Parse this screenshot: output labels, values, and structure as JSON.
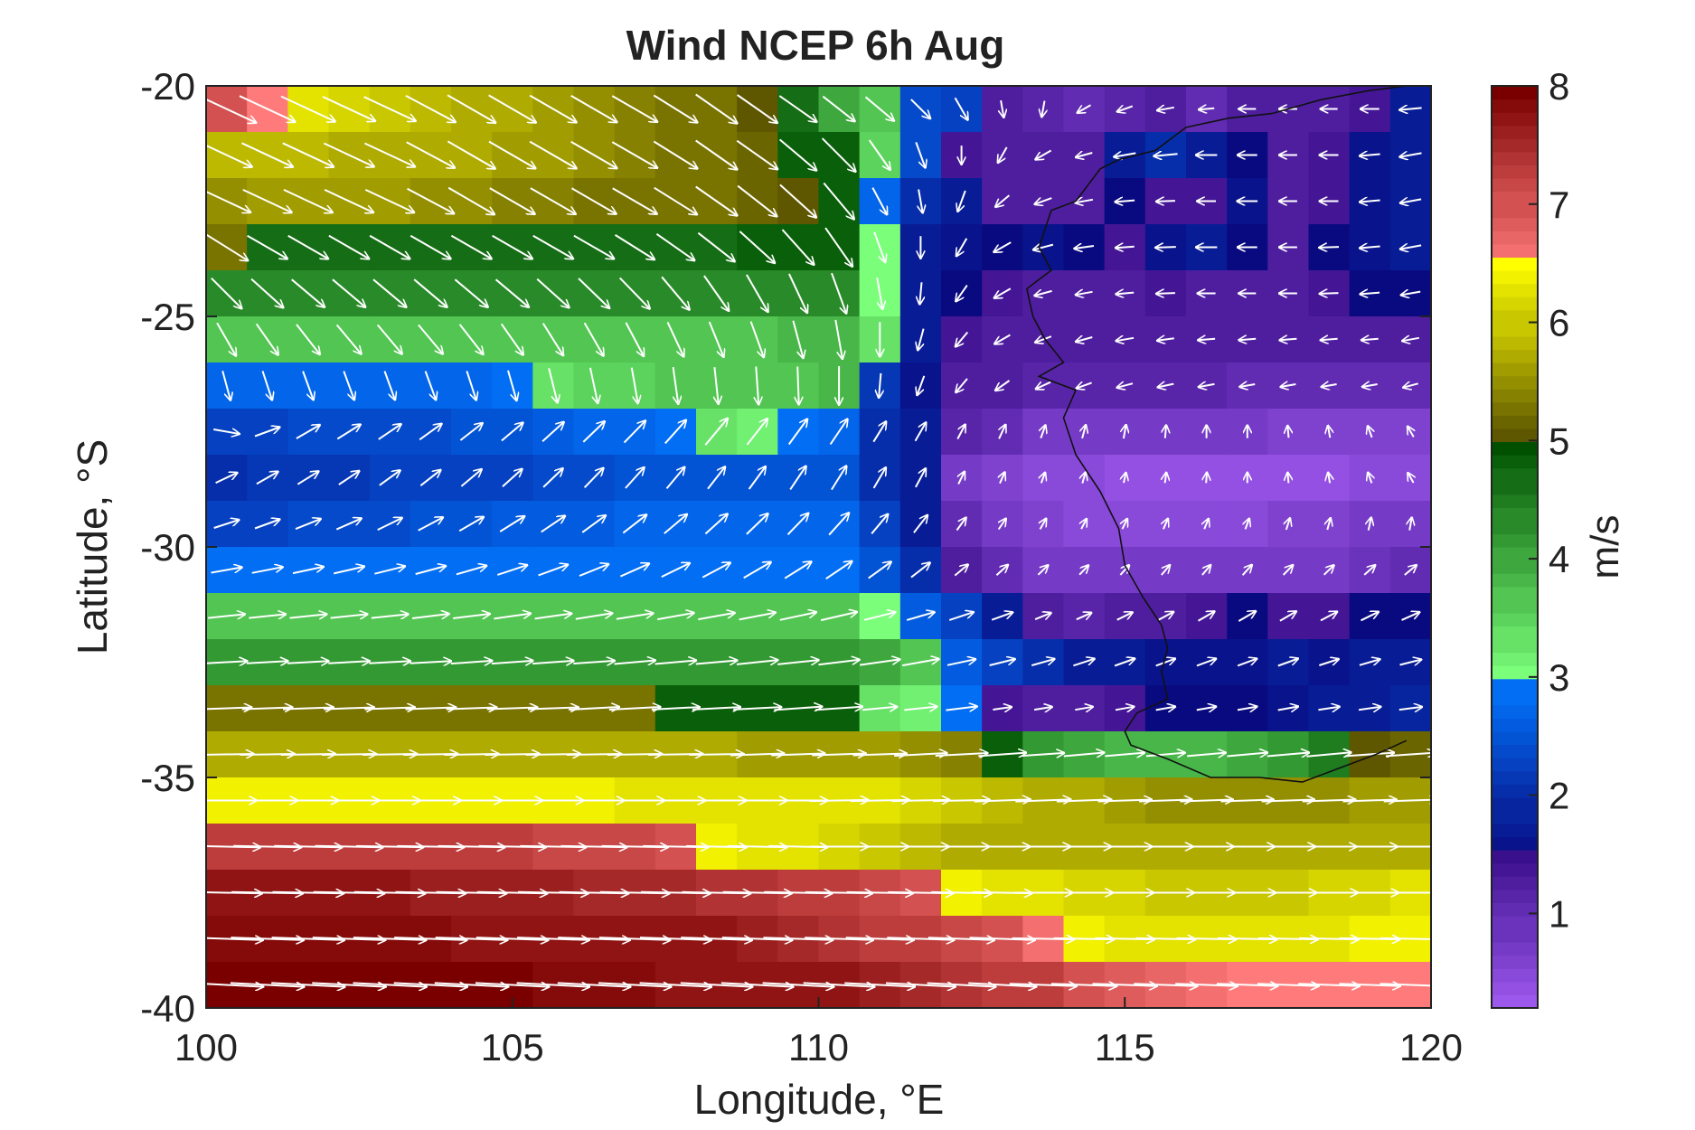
{
  "chart_data": {
    "type": "heatmap",
    "title": "Wind NCEP 6h Aug",
    "xlabel": "Longitude, °E",
    "ylabel": "Latitude, °S",
    "colorbar_label": "m/s",
    "xlim": [
      100,
      120
    ],
    "ylim": [
      -40,
      -20
    ],
    "x_ticks": [
      {
        "value": 100,
        "label": "100"
      },
      {
        "value": 105,
        "label": "105"
      },
      {
        "value": 110,
        "label": "110"
      },
      {
        "value": 115,
        "label": "115"
      },
      {
        "value": 120,
        "label": "120"
      }
    ],
    "y_ticks": [
      {
        "value": -20,
        "label": "-20"
      },
      {
        "value": -25,
        "label": "-25"
      },
      {
        "value": -30,
        "label": "-30"
      },
      {
        "value": -35,
        "label": "-35"
      },
      {
        "value": -40,
        "label": "-40"
      }
    ],
    "colorbar": {
      "range": [
        0.2,
        8
      ],
      "ticks": [
        {
          "value": 1,
          "label": "1"
        },
        {
          "value": 2,
          "label": "2"
        },
        {
          "value": 3,
          "label": "3"
        },
        {
          "value": 4,
          "label": "4"
        },
        {
          "value": 5,
          "label": "5"
        },
        {
          "value": 6,
          "label": "6"
        },
        {
          "value": 7,
          "label": "7"
        },
        {
          "value": 8,
          "label": "8"
        }
      ],
      "colors": {
        "0": "#b066ff",
        "1.5": "#3a0f8c",
        "1.5b": "#0a0a80",
        "3": "#0077ff",
        "3b": "#7bff7b",
        "5": "#005000",
        "5b": "#5e5700",
        "6.5": "#ffff00",
        "6.5b": "#ff7a7a",
        "8": "#7a0000"
      }
    },
    "grid": false,
    "grid_spec": {
      "lon_start": 100,
      "lon_step": 1,
      "lon_count": 20,
      "lat_start": -20.5,
      "lat_step": -1,
      "lat_count": 20
    },
    "speed_rows": [
      [
        7.0,
        6.5,
        6.3,
        6.1,
        6.0,
        5.9,
        5.8,
        5.7,
        5.6,
        5.5,
        5.4,
        5.3,
        5.2,
        5.0,
        4.6,
        4.0,
        3.6,
        2.4,
        2.2,
        1.2,
        1.1,
        1.0,
        1.1,
        1.2,
        1.0,
        1.2,
        1.3,
        1.2,
        1.4,
        1.8
      ],
      [
        5.9,
        5.9,
        5.9,
        5.8,
        5.8,
        5.7,
        5.7,
        5.6,
        5.6,
        5.5,
        5.4,
        5.3,
        5.2,
        5.1,
        4.9,
        4.8,
        3.5,
        2.4,
        1.4,
        1.3,
        1.3,
        1.2,
        1.8,
        2.0,
        1.7,
        1.5,
        1.3,
        1.4,
        1.6,
        1.8
      ],
      [
        5.5,
        5.6,
        5.6,
        5.6,
        5.6,
        5.5,
        5.5,
        5.4,
        5.4,
        5.3,
        5.3,
        5.2,
        5.2,
        5.1,
        5.0,
        4.8,
        2.8,
        2.0,
        1.8,
        1.3,
        1.3,
        1.3,
        1.5,
        1.4,
        1.4,
        1.6,
        1.3,
        1.4,
        1.6,
        1.7
      ],
      [
        5.2,
        4.7,
        4.7,
        4.7,
        4.7,
        4.7,
        4.7,
        4.7,
        4.7,
        4.7,
        4.7,
        4.7,
        4.7,
        4.8,
        4.8,
        4.8,
        3.0,
        1.8,
        1.6,
        1.5,
        1.6,
        1.5,
        1.4,
        1.6,
        1.7,
        1.5,
        1.3,
        1.5,
        1.6,
        1.7
      ],
      [
        4.3,
        4.3,
        4.3,
        4.3,
        4.3,
        4.3,
        4.3,
        4.3,
        4.3,
        4.3,
        4.3,
        4.3,
        4.3,
        4.3,
        4.3,
        4.3,
        3.0,
        1.8,
        1.5,
        1.4,
        1.3,
        1.2,
        1.3,
        1.4,
        1.3,
        1.2,
        1.3,
        1.4,
        1.5,
        1.5
      ],
      [
        3.7,
        3.7,
        3.7,
        3.7,
        3.7,
        3.7,
        3.7,
        3.7,
        3.7,
        3.7,
        3.7,
        3.7,
        3.7,
        3.7,
        3.8,
        3.9,
        3.3,
        1.8,
        1.4,
        1.3,
        1.2,
        1.2,
        1.3,
        1.2,
        1.2,
        1.2,
        1.2,
        1.2,
        1.2,
        1.2
      ],
      [
        2.8,
        2.8,
        2.8,
        2.8,
        2.8,
        2.8,
        2.8,
        2.9,
        3.4,
        3.5,
        3.5,
        3.6,
        3.6,
        3.7,
        3.7,
        3.8,
        2.1,
        1.6,
        1.3,
        1.2,
        1.1,
        1.1,
        1.1,
        1.1,
        1.1,
        1.0,
        1.0,
        1.0,
        1.0,
        1.0
      ],
      [
        2.3,
        2.3,
        2.4,
        2.4,
        2.4,
        2.4,
        2.5,
        2.5,
        2.6,
        2.7,
        2.8,
        2.9,
        3.3,
        3.1,
        2.9,
        2.8,
        2.0,
        1.7,
        1.1,
        1.0,
        0.8,
        0.8,
        0.8,
        0.7,
        0.7,
        0.7,
        0.6,
        0.6,
        0.6,
        0.6
      ],
      [
        2.0,
        2.1,
        2.1,
        2.1,
        2.2,
        2.2,
        2.3,
        2.3,
        2.4,
        2.4,
        2.5,
        2.5,
        2.5,
        2.5,
        2.5,
        2.5,
        2.0,
        1.7,
        0.8,
        0.6,
        0.5,
        0.5,
        0.4,
        0.4,
        0.4,
        0.4,
        0.4,
        0.4,
        0.5,
        0.5
      ],
      [
        2.3,
        2.3,
        2.4,
        2.4,
        2.4,
        2.5,
        2.5,
        2.6,
        2.6,
        2.6,
        2.7,
        2.7,
        2.7,
        2.7,
        2.7,
        2.7,
        2.2,
        1.8,
        1.0,
        0.7,
        0.6,
        0.5,
        0.5,
        0.5,
        0.5,
        0.5,
        0.6,
        0.6,
        0.7,
        0.7
      ],
      [
        2.9,
        2.9,
        2.9,
        2.9,
        2.9,
        2.9,
        2.9,
        2.9,
        2.9,
        2.9,
        2.9,
        2.9,
        2.9,
        2.9,
        2.9,
        2.9,
        2.5,
        2.0,
        1.2,
        1.0,
        0.8,
        0.7,
        0.7,
        0.7,
        0.7,
        0.8,
        0.8,
        0.8,
        0.9,
        1.0
      ],
      [
        3.6,
        3.6,
        3.6,
        3.6,
        3.6,
        3.6,
        3.6,
        3.6,
        3.6,
        3.6,
        3.6,
        3.6,
        3.6,
        3.6,
        3.6,
        3.6,
        3.0,
        2.6,
        2.2,
        1.8,
        1.2,
        1.1,
        1.2,
        1.3,
        1.4,
        1.5,
        1.4,
        1.4,
        1.5,
        1.5
      ],
      [
        4.1,
        4.1,
        4.1,
        4.1,
        4.1,
        4.1,
        4.1,
        4.1,
        4.1,
        4.1,
        4.1,
        4.1,
        4.1,
        4.1,
        4.1,
        4.1,
        4.0,
        3.6,
        2.6,
        2.3,
        2.0,
        1.8,
        1.7,
        1.6,
        1.6,
        1.6,
        1.7,
        1.6,
        1.7,
        1.8
      ],
      [
        5.2,
        5.2,
        5.2,
        5.2,
        5.2,
        5.2,
        5.2,
        5.2,
        5.2,
        5.2,
        5.3,
        4.9,
        4.9,
        4.9,
        4.9,
        4.8,
        3.3,
        3.1,
        2.9,
        1.4,
        1.3,
        1.3,
        1.4,
        1.5,
        1.5,
        1.5,
        1.6,
        1.7,
        1.8,
        1.9
      ],
      [
        5.7,
        5.7,
        5.7,
        5.7,
        5.7,
        5.7,
        5.7,
        5.7,
        5.7,
        5.7,
        5.7,
        5.7,
        5.7,
        5.6,
        5.6,
        5.6,
        5.6,
        5.5,
        5.4,
        4.9,
        4.2,
        4.0,
        3.9,
        3.8,
        3.8,
        4.0,
        4.2,
        4.5,
        5.0,
        5.1
      ],
      [
        6.4,
        6.4,
        6.4,
        6.4,
        6.4,
        6.4,
        6.4,
        6.4,
        6.4,
        6.4,
        6.3,
        6.3,
        6.3,
        6.3,
        6.2,
        6.2,
        6.2,
        6.1,
        6.0,
        5.9,
        5.8,
        5.7,
        5.6,
        5.5,
        5.5,
        5.5,
        5.5,
        5.5,
        5.6,
        5.6
      ],
      [
        7.3,
        7.3,
        7.3,
        7.3,
        7.2,
        7.2,
        7.2,
        7.2,
        7.1,
        7.1,
        7.1,
        7.0,
        6.4,
        6.3,
        6.2,
        6.1,
        6.0,
        5.9,
        5.8,
        5.8,
        5.7,
        5.7,
        5.7,
        5.7,
        5.7,
        5.7,
        5.7,
        5.8,
        5.8,
        5.8
      ],
      [
        7.7,
        7.7,
        7.7,
        7.7,
        7.7,
        7.6,
        7.6,
        7.6,
        7.6,
        7.5,
        7.5,
        7.5,
        7.4,
        7.4,
        7.3,
        7.2,
        7.1,
        7.0,
        6.4,
        6.3,
        6.2,
        6.1,
        6.1,
        6.0,
        6.0,
        6.0,
        6.0,
        6.1,
        6.1,
        6.2
      ],
      [
        7.9,
        7.9,
        7.9,
        7.9,
        7.9,
        7.9,
        7.8,
        7.8,
        7.8,
        7.8,
        7.7,
        7.7,
        7.7,
        7.6,
        7.5,
        7.4,
        7.3,
        7.2,
        7.1,
        7.0,
        6.6,
        6.4,
        6.3,
        6.3,
        6.3,
        6.3,
        6.3,
        6.3,
        6.4,
        6.4
      ],
      [
        8.0,
        8.0,
        8.0,
        8.0,
        8.0,
        8.0,
        8.0,
        8.0,
        7.9,
        7.9,
        7.9,
        7.8,
        7.8,
        7.8,
        7.7,
        7.7,
        7.6,
        7.5,
        7.4,
        7.3,
        7.2,
        7.0,
        6.9,
        6.8,
        6.6,
        6.5,
        6.5,
        6.5,
        6.5,
        6.5
      ]
    ],
    "speed_row_lon_step": 0.67,
    "wind_direction_deg": [
      [
        -25,
        -25,
        -25,
        -25,
        -25,
        -28,
        -30,
        -30,
        -30,
        -30,
        -30,
        -32,
        -35,
        -35,
        -35,
        -38,
        -40,
        -45,
        -60,
        -80,
        -100,
        -150,
        -160,
        -170,
        -175,
        -180,
        -180,
        -180,
        -180,
        -175
      ],
      [
        -25,
        -25,
        -25,
        -25,
        -25,
        -28,
        -30,
        -30,
        -30,
        -30,
        -30,
        -32,
        -35,
        -35,
        -40,
        -45,
        -55,
        -70,
        -90,
        -120,
        -150,
        -165,
        -170,
        -175,
        -180,
        -180,
        -180,
        -180,
        -175,
        -170
      ],
      [
        -25,
        -25,
        -25,
        -25,
        -25,
        -28,
        -30,
        -30,
        -30,
        -30,
        -30,
        -32,
        -35,
        -38,
        -42,
        -50,
        -62,
        -80,
        -110,
        -140,
        -160,
        -170,
        -175,
        -178,
        -180,
        -180,
        -180,
        -180,
        -175,
        -170
      ],
      [
        -32,
        -30,
        -30,
        -30,
        -30,
        -30,
        -30,
        -30,
        -30,
        -30,
        -32,
        -35,
        -38,
        -42,
        -48,
        -55,
        -70,
        -90,
        -120,
        -150,
        -165,
        -172,
        -176,
        -178,
        -180,
        -180,
        -180,
        -178,
        -175,
        -170
      ],
      [
        -45,
        -42,
        -40,
        -40,
        -40,
        -40,
        -40,
        -40,
        -42,
        -44,
        -46,
        -50,
        -55,
        -60,
        -65,
        -70,
        -80,
        -95,
        -125,
        -150,
        -165,
        -170,
        -175,
        -178,
        -180,
        -180,
        -180,
        -178,
        -175,
        -170
      ],
      [
        -60,
        -55,
        -52,
        -50,
        -50,
        -50,
        -52,
        -55,
        -58,
        -60,
        -62,
        -65,
        -68,
        -70,
        -75,
        -80,
        -90,
        -105,
        -130,
        -150,
        -160,
        -165,
        -170,
        -172,
        -175,
        -175,
        -175,
        -175,
        -175,
        -170
      ],
      [
        -75,
        -72,
        -70,
        -70,
        -70,
        -70,
        -72,
        -74,
        -76,
        -78,
        -80,
        -82,
        -84,
        -86,
        -88,
        -90,
        -95,
        -110,
        -130,
        -145,
        -155,
        -160,
        -165,
        -168,
        -170,
        -170,
        -170,
        -170,
        -170,
        -165
      ],
      [
        -10,
        20,
        30,
        32,
        34,
        36,
        38,
        40,
        42,
        44,
        46,
        48,
        50,
        52,
        54,
        56,
        58,
        60,
        62,
        65,
        70,
        75,
        80,
        85,
        90,
        90,
        95,
        100,
        110,
        120
      ],
      [
        25,
        30,
        32,
        34,
        36,
        38,
        40,
        42,
        44,
        46,
        48,
        50,
        52,
        54,
        56,
        58,
        60,
        62,
        64,
        66,
        70,
        74,
        78,
        82,
        86,
        90,
        95,
        100,
        110,
        120
      ],
      [
        18,
        20,
        22,
        24,
        26,
        28,
        30,
        32,
        34,
        36,
        38,
        40,
        42,
        44,
        46,
        48,
        50,
        52,
        54,
        56,
        60,
        62,
        64,
        66,
        68,
        70,
        72,
        75,
        78,
        80
      ],
      [
        10,
        11,
        12,
        13,
        14,
        15,
        16,
        18,
        20,
        22,
        24,
        26,
        28,
        30,
        32,
        34,
        36,
        38,
        40,
        42,
        44,
        46,
        48,
        50,
        50,
        48,
        46,
        44,
        42,
        40
      ],
      [
        6,
        6,
        6,
        6,
        6,
        7,
        7,
        8,
        8,
        9,
        9,
        10,
        10,
        11,
        12,
        13,
        14,
        16,
        18,
        20,
        22,
        24,
        26,
        28,
        30,
        30,
        30,
        28,
        26,
        24
      ],
      [
        3,
        3,
        3,
        3,
        3,
        3,
        4,
        4,
        4,
        4,
        5,
        5,
        5,
        6,
        6,
        7,
        8,
        10,
        12,
        14,
        16,
        18,
        20,
        20,
        20,
        20,
        20,
        18,
        16,
        14
      ],
      [
        2,
        2,
        2,
        2,
        2,
        2,
        2,
        2,
        2,
        3,
        3,
        3,
        3,
        3,
        4,
        4,
        5,
        6,
        7,
        8,
        9,
        10,
        10,
        10,
        10,
        10,
        10,
        9,
        8,
        7
      ],
      [
        1,
        1,
        1,
        1,
        1,
        1,
        1,
        1,
        1,
        1,
        1,
        1,
        1,
        2,
        2,
        2,
        2,
        3,
        3,
        4,
        4,
        5,
        5,
        5,
        5,
        5,
        5,
        5,
        4,
        4
      ],
      [
        0,
        0,
        0,
        0,
        0,
        0,
        0,
        0,
        0,
        0,
        0,
        0,
        0,
        0,
        0,
        1,
        1,
        1,
        1,
        2,
        2,
        2,
        2,
        2,
        2,
        2,
        2,
        2,
        2,
        2
      ],
      [
        -1,
        -1,
        -1,
        -1,
        -1,
        -1,
        -1,
        -1,
        -1,
        -1,
        -1,
        -1,
        -1,
        -1,
        -1,
        0,
        0,
        0,
        0,
        0,
        0,
        0,
        0,
        0,
        0,
        0,
        0,
        0,
        0,
        0
      ],
      [
        -1,
        -1,
        -1,
        -1,
        -1,
        -1,
        -1,
        -1,
        -1,
        -1,
        -1,
        -1,
        -1,
        -1,
        -1,
        -1,
        -1,
        -1,
        -1,
        -1,
        0,
        0,
        0,
        0,
        0,
        0,
        0,
        0,
        0,
        0
      ],
      [
        -2,
        -2,
        -2,
        -2,
        -2,
        -2,
        -2,
        -2,
        -2,
        -2,
        -2,
        -2,
        -2,
        -2,
        -2,
        -2,
        -2,
        -2,
        -2,
        -2,
        -1,
        -1,
        -1,
        -1,
        -1,
        -1,
        -1,
        -1,
        -1,
        -1
      ],
      [
        -3,
        -3,
        -3,
        -3,
        -3,
        -3,
        -3,
        -3,
        -3,
        -3,
        -3,
        -3,
        -3,
        -3,
        -3,
        -3,
        -3,
        -3,
        -3,
        -3,
        -2,
        -2,
        -2,
        -2,
        -2,
        -2,
        -2,
        -2,
        -2,
        -2
      ]
    ],
    "coastline_lonlat": [
      [
        119.6,
        -20.0
      ],
      [
        119.0,
        -20.1
      ],
      [
        118.2,
        -20.3
      ],
      [
        117.4,
        -20.6
      ],
      [
        116.7,
        -20.7
      ],
      [
        116.0,
        -20.9
      ],
      [
        115.5,
        -21.4
      ],
      [
        114.9,
        -21.6
      ],
      [
        114.6,
        -21.8
      ],
      [
        114.2,
        -22.5
      ],
      [
        113.8,
        -22.7
      ],
      [
        113.6,
        -23.5
      ],
      [
        113.8,
        -24.0
      ],
      [
        113.4,
        -24.4
      ],
      [
        113.5,
        -25.0
      ],
      [
        113.7,
        -25.5
      ],
      [
        114.0,
        -26.0
      ],
      [
        113.6,
        -26.3
      ],
      [
        114.2,
        -26.6
      ],
      [
        114.0,
        -27.2
      ],
      [
        114.2,
        -28.0
      ],
      [
        114.6,
        -28.8
      ],
      [
        114.9,
        -29.6
      ],
      [
        115.0,
        -30.4
      ],
      [
        115.3,
        -31.1
      ],
      [
        115.6,
        -31.7
      ],
      [
        115.7,
        -32.2
      ],
      [
        115.6,
        -32.7
      ],
      [
        115.7,
        -33.3
      ],
      [
        115.2,
        -33.6
      ],
      [
        115.0,
        -34.0
      ],
      [
        115.1,
        -34.3
      ],
      [
        115.7,
        -34.6
      ],
      [
        116.4,
        -35.0
      ],
      [
        117.2,
        -35.0
      ],
      [
        117.9,
        -35.1
      ],
      [
        118.5,
        -34.8
      ],
      [
        119.1,
        -34.5
      ],
      [
        119.6,
        -34.2
      ]
    ]
  }
}
